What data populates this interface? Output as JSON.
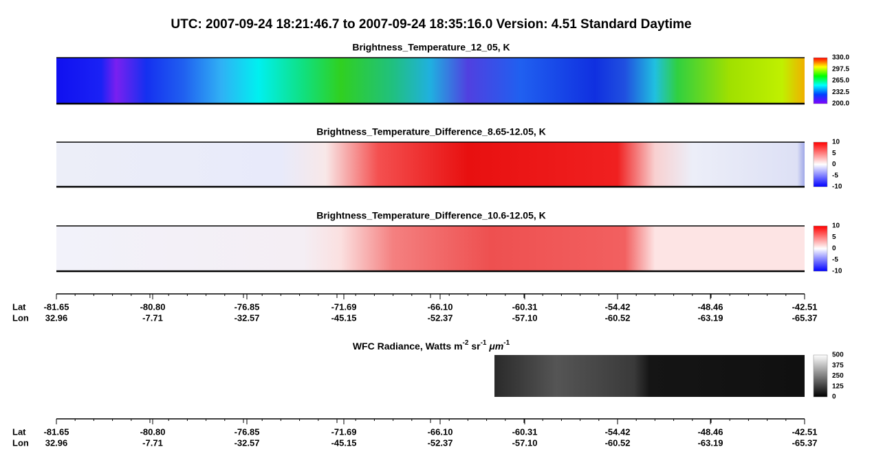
{
  "title": "UTC:  2007-09-24   18:21:46.7  to  2007-09-24   18:35:16.0    Version: 4.51  Standard Daytime",
  "panels": [
    {
      "title": "Brightness_Temperature_12_05, K",
      "colorbar": [
        "330.0",
        "297.5",
        "265.0",
        "232.5",
        "200.0"
      ]
    },
    {
      "title": "Brightness_Temperature_Difference_8.65-12.05, K",
      "colorbar": [
        "10",
        "5",
        "0",
        "-5",
        "-10"
      ]
    },
    {
      "title": "Brightness_Temperature_Difference_10.6-12.05, K",
      "colorbar": [
        "10",
        "5",
        "0",
        "-5",
        "-10"
      ]
    }
  ],
  "radiance": {
    "title_parts": [
      "WFC Radiance, Watts m",
      "-2",
      " sr",
      "-1",
      " μm",
      "-1"
    ],
    "colorbar": [
      "500",
      "375",
      "250",
      "125",
      "0"
    ]
  },
  "axes": [
    {
      "lat_label": "Lat",
      "lon_label": "Lon",
      "lat": [
        "-81.65",
        "-80.80",
        "-76.85",
        "-71.69",
        "-66.10",
        "-60.31",
        "-54.42",
        "-48.46",
        "-42.51"
      ],
      "lon": [
        "32.96",
        "-7.71",
        "-32.57",
        "-45.15",
        "-52.37",
        "-57.10",
        "-60.52",
        "-63.19",
        "-65.37"
      ]
    },
    {
      "lat_label": "Lat",
      "lon_label": "Lon",
      "lat": [
        "-81.65",
        "-80.80",
        "-76.85",
        "-71.69",
        "-66.10",
        "-60.31",
        "-54.42",
        "-48.46",
        "-42.51"
      ],
      "lon": [
        "32.96",
        "-7.71",
        "-32.57",
        "-45.15",
        "-52.37",
        "-57.10",
        "-60.52",
        "-63.19",
        "-65.37"
      ]
    }
  ]
}
